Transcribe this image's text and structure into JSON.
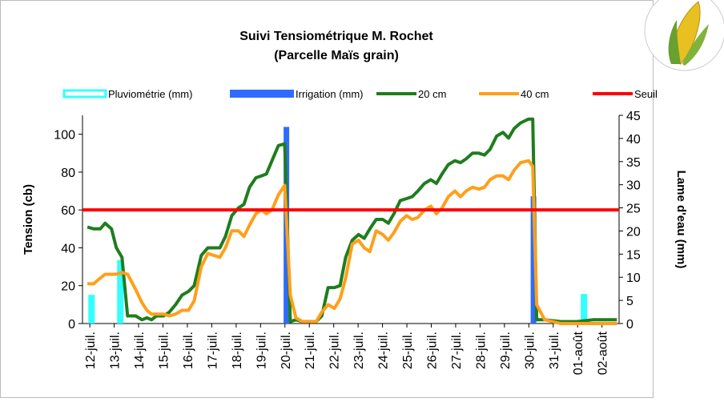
{
  "chart_data": {
    "type": "combo",
    "title": "Suivi Tensiométrique M. Rochet",
    "subtitle": "(Parcelle Maïs grain)",
    "y_label": "Tension (cb)",
    "y2_label": "Lame d'eau (mm)",
    "xlim": [
      -0.3,
      21.7
    ],
    "xticks": [
      {
        "value": 0,
        "label": "12-juil."
      },
      {
        "value": 1,
        "label": "13-juil."
      },
      {
        "value": 2,
        "label": "14-juil."
      },
      {
        "value": 3,
        "label": "15-juil."
      },
      {
        "value": 4,
        "label": "16-juil."
      },
      {
        "value": 5,
        "label": "17-juil."
      },
      {
        "value": 6,
        "label": "18-juil."
      },
      {
        "value": 7,
        "label": "19-juil."
      },
      {
        "value": 8,
        "label": "20-juil."
      },
      {
        "value": 9,
        "label": "21-juil."
      },
      {
        "value": 10,
        "label": "22-juil."
      },
      {
        "value": 11,
        "label": "23-juil."
      },
      {
        "value": 12,
        "label": "24-juil."
      },
      {
        "value": 13,
        "label": "25-juil."
      },
      {
        "value": 14,
        "label": "26-juil."
      },
      {
        "value": 15,
        "label": "27-juil."
      },
      {
        "value": 16,
        "label": "28-juil."
      },
      {
        "value": 17,
        "label": "29-juil."
      },
      {
        "value": 18,
        "label": "30-juil."
      },
      {
        "value": 19,
        "label": "31-juil."
      },
      {
        "value": 20,
        "label": "01-août"
      },
      {
        "value": 21,
        "label": "02-août"
      }
    ],
    "ylim": [
      0,
      110
    ],
    "yticks": [
      0,
      20,
      40,
      60,
      80,
      100
    ],
    "y2lim": [
      0,
      45
    ],
    "y2ticks": [
      0,
      5,
      10,
      15,
      20,
      25,
      30,
      35,
      40,
      45
    ],
    "series": [
      {
        "name": "Pluviométrie (mm)",
        "kind": "bar",
        "axis": "y2",
        "color": "#33ffff",
        "x": [
          0.07,
          1.25,
          20.26
        ],
        "values": [
          6.2,
          13.7,
          6.4
        ]
      },
      {
        "name": "Irrigation (mm)",
        "kind": "bar",
        "axis": "y2",
        "color": "#2f6bff",
        "x": [
          8.06,
          18.19
        ],
        "values": [
          42.5,
          27.5
        ]
      },
      {
        "name": "20 cm",
        "kind": "line",
        "color": "#1e7d1e",
        "x": [
          -0.1,
          0.16,
          0.43,
          0.63,
          0.89,
          1.09,
          1.32,
          1.55,
          1.88,
          2.14,
          2.34,
          2.53,
          2.73,
          3.03,
          3.26,
          3.52,
          3.78,
          4.05,
          4.28,
          4.57,
          4.84,
          5.33,
          5.56,
          5.82,
          6.09,
          6.32,
          6.55,
          6.81,
          7.04,
          7.24,
          7.47,
          7.73,
          7.99,
          8.22,
          8.45,
          8.72,
          9.05,
          9.28,
          9.51,
          9.77,
          10.03,
          10.26,
          10.49,
          10.76,
          11.02,
          11.25,
          11.48,
          11.74,
          12.01,
          12.24,
          12.47,
          12.73,
          12.99,
          13.22,
          13.45,
          13.72,
          13.98,
          14.21,
          14.44,
          14.7,
          14.97,
          15.2,
          15.43,
          15.69,
          15.95,
          16.18,
          16.41,
          16.68,
          16.94,
          17.17,
          17.4,
          17.66,
          17.99,
          18.16,
          18.32,
          18.65,
          19.31,
          19.97,
          20.63,
          21.61
        ],
        "values": [
          51,
          50,
          50,
          53,
          50,
          40,
          35,
          4,
          4,
          2,
          3,
          2,
          4,
          4,
          6,
          10,
          15,
          17,
          20,
          36,
          40,
          40,
          46,
          57,
          61,
          63,
          72,
          77,
          78,
          79,
          86,
          94,
          95,
          1,
          2,
          1,
          1,
          1,
          4,
          19,
          19,
          20,
          35,
          44,
          47,
          45,
          50,
          55,
          55,
          53,
          58,
          65,
          66,
          67,
          70,
          74,
          76,
          74,
          79,
          84,
          86,
          85,
          87,
          90,
          90,
          89,
          92,
          99,
          101,
          98,
          103,
          106,
          108,
          108,
          2,
          2,
          1,
          1,
          2,
          2
        ]
      },
      {
        "name": "40 cm",
        "kind": "line",
        "color": "#ff9f1a",
        "x": [
          -0.1,
          0.16,
          0.43,
          0.63,
          0.89,
          1.09,
          1.32,
          1.55,
          1.88,
          2.14,
          2.34,
          2.53,
          2.73,
          3.03,
          3.26,
          3.52,
          3.78,
          4.05,
          4.28,
          4.57,
          4.84,
          5.33,
          5.56,
          5.82,
          6.09,
          6.32,
          6.55,
          6.81,
          7.04,
          7.24,
          7.47,
          7.73,
          7.99,
          8.22,
          8.45,
          8.72,
          9.05,
          9.28,
          9.51,
          9.77,
          10.03,
          10.26,
          10.49,
          10.76,
          11.02,
          11.25,
          11.48,
          11.74,
          12.01,
          12.24,
          12.47,
          12.73,
          12.99,
          13.22,
          13.45,
          13.72,
          13.98,
          14.21,
          14.44,
          14.7,
          14.97,
          15.2,
          15.43,
          15.69,
          15.95,
          16.18,
          16.41,
          16.68,
          16.94,
          17.17,
          17.4,
          17.66,
          17.99,
          18.16,
          18.32,
          18.65,
          19.31,
          19.97,
          20.63,
          21.61
        ],
        "values": [
          21,
          21,
          24,
          26,
          26,
          26,
          27,
          26,
          18,
          11,
          7,
          5,
          5,
          5,
          4,
          5,
          7,
          7,
          12,
          30,
          37,
          35,
          40,
          49,
          49,
          46,
          52,
          58,
          60,
          58,
          60,
          68,
          73,
          15,
          3,
          1,
          1,
          1,
          6,
          10,
          8,
          13,
          24,
          42,
          44,
          40,
          38,
          49,
          47,
          44,
          48,
          54,
          57,
          55,
          56,
          60,
          62,
          58,
          61,
          67,
          70,
          67,
          70,
          72,
          71,
          72,
          76,
          78,
          78,
          76,
          81,
          85,
          86,
          83,
          10,
          2,
          0,
          0,
          0,
          0
        ]
      },
      {
        "name": "Seuil",
        "kind": "hline",
        "color": "#ff0000",
        "values": [
          60
        ]
      }
    ]
  }
}
